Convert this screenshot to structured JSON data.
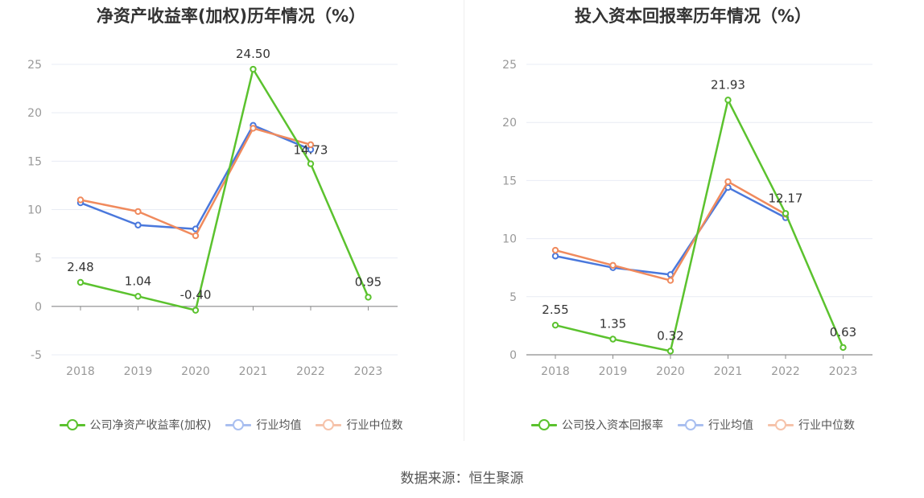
{
  "source": "数据来源：恒生聚源",
  "colors": {
    "company": "#5bc22e",
    "avg": "#4a78dc",
    "median": "#f08a5d",
    "grid": "#e8ecf4",
    "axis": "#8c8c8c",
    "label": "#999999"
  },
  "chart_data": [
    {
      "type": "line",
      "title": "净资产收益率(加权)历年情况（%）",
      "categories": [
        "2018",
        "2019",
        "2020",
        "2021",
        "2022",
        "2023"
      ],
      "ylim": [
        -5,
        25
      ],
      "yticks": [
        -5,
        0,
        5,
        10,
        15,
        20,
        25
      ],
      "grid": true,
      "legend_position": "bottom",
      "series": [
        {
          "name": "公司净资产收益率(加权)",
          "key": "company",
          "values": [
            2.48,
            1.04,
            -0.4,
            24.5,
            14.73,
            0.95
          ],
          "labels": [
            "2.48",
            "1.04",
            "-0.40",
            "24.50",
            "14.73",
            "0.95"
          ]
        },
        {
          "name": "行业均值",
          "key": "avg",
          "values": [
            10.7,
            8.4,
            8.0,
            18.7,
            16.2,
            null
          ]
        },
        {
          "name": "行业中位数",
          "key": "median",
          "values": [
            11.0,
            9.8,
            7.3,
            18.4,
            16.7,
            null
          ]
        }
      ]
    },
    {
      "type": "line",
      "title": "投入资本回报率历年情况（%）",
      "categories": [
        "2018",
        "2019",
        "2020",
        "2021",
        "2022",
        "2023"
      ],
      "ylim": [
        0,
        25
      ],
      "yticks": [
        0,
        5,
        10,
        15,
        20,
        25
      ],
      "grid": true,
      "legend_position": "bottom",
      "series": [
        {
          "name": "公司投入资本回报率",
          "key": "company",
          "values": [
            2.55,
            1.35,
            0.32,
            21.93,
            12.17,
            0.63
          ],
          "labels": [
            "2.55",
            "1.35",
            "0.32",
            "21.93",
            "12.17",
            "0.63"
          ]
        },
        {
          "name": "行业均值",
          "key": "avg",
          "values": [
            8.5,
            7.5,
            6.9,
            14.4,
            11.8,
            null
          ]
        },
        {
          "name": "行业中位数",
          "key": "median",
          "values": [
            9.0,
            7.7,
            6.4,
            14.9,
            12.1,
            null
          ]
        }
      ]
    }
  ]
}
